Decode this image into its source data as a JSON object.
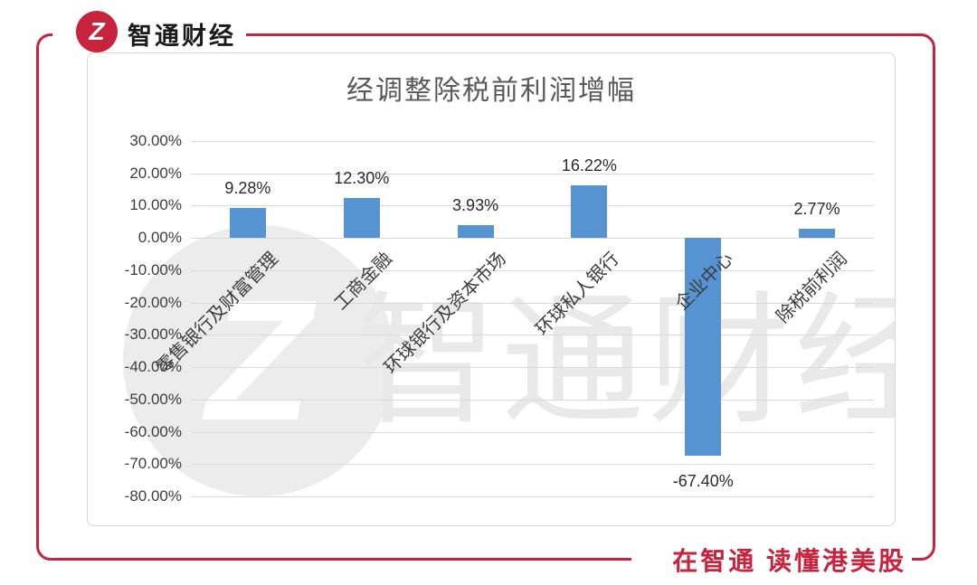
{
  "brand": {
    "logo_glyph": "Z",
    "logo_text": "智通财经"
  },
  "footer": {
    "slogan": "在智通 读懂港美股"
  },
  "colors": {
    "brand_red": "#C8233C",
    "bar_blue": "#5593D3",
    "title_gray": "#595959",
    "grid_gray": "#D9D9D9"
  },
  "watermark": {
    "glyph": "Z",
    "text": "智通财经"
  },
  "chart_data": {
    "type": "bar",
    "title": "经调整除税前利润增幅",
    "categories": [
      "零售银行及财富管理",
      "工商金融",
      "环球银行及资本市场",
      "环球私人银行",
      "企业中心",
      "除税前利润"
    ],
    "values": [
      9.28,
      12.3,
      3.93,
      16.22,
      -67.4,
      2.77
    ],
    "value_labels": [
      "9.28%",
      "12.30%",
      "3.93%",
      "16.22%",
      "-67.40%",
      "2.77%"
    ],
    "xlabel": "",
    "ylabel": "",
    "ylim": [
      -80,
      30
    ],
    "ytick_values": [
      30,
      20,
      10,
      0,
      -10,
      -20,
      -30,
      -40,
      -50,
      -60,
      -70,
      -80
    ],
    "ytick_labels": [
      "30.00%",
      "20.00%",
      "10.00%",
      "0.00%",
      "-10.00%",
      "-20.00%",
      "-30.00%",
      "-40.00%",
      "-50.00%",
      "-60.00%",
      "-70.00%",
      "-80.00%"
    ],
    "grid": true,
    "legend": "none",
    "bar_color": "#5593D3"
  }
}
